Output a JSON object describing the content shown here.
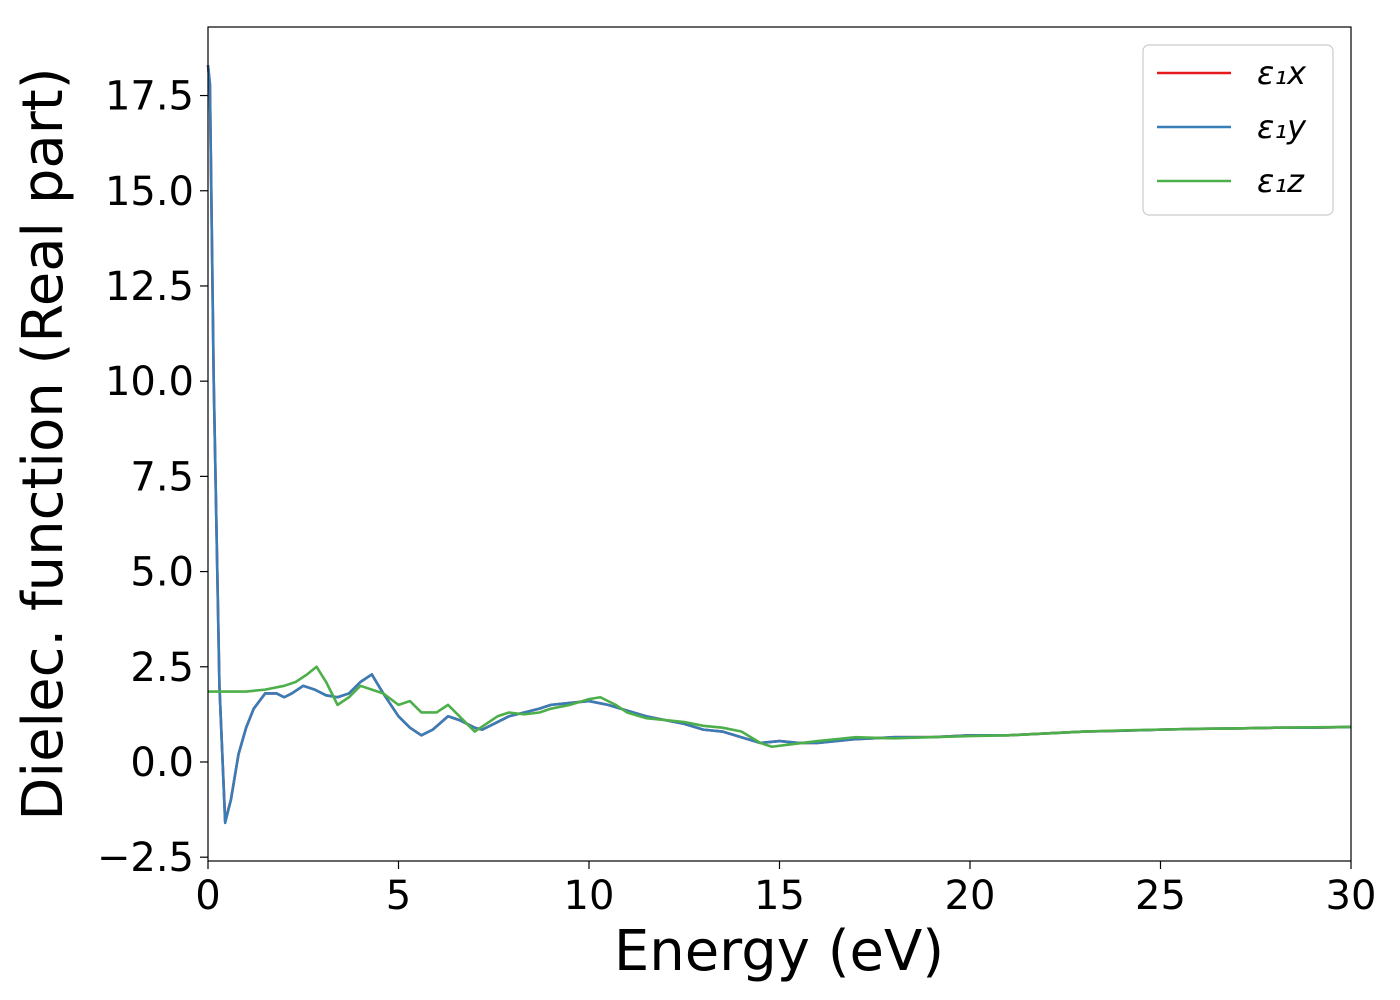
{
  "chart_data": {
    "type": "line",
    "title": "",
    "xlabel": "Energy (eV)",
    "ylabel": "Dielec. function (Real part)",
    "xlim": [
      0,
      30
    ],
    "ylim": [
      -2.6,
      19.3
    ],
    "xticks": [
      0,
      5,
      10,
      15,
      20,
      25,
      30
    ],
    "xtick_labels": [
      "0",
      "5",
      "10",
      "15",
      "20",
      "25",
      "30"
    ],
    "yticks": [
      -2.5,
      0.0,
      2.5,
      5.0,
      7.5,
      10.0,
      12.5,
      15.0,
      17.5
    ],
    "ytick_labels": [
      "−2.5",
      "0.0",
      "2.5",
      "5.0",
      "7.5",
      "10.0",
      "12.5",
      "15.0",
      "17.5"
    ],
    "grid": false,
    "legend_position": "top-right",
    "series": [
      {
        "name": "ε₁x",
        "color": "#e41a1c",
        "x": [
          0.0,
          0.05,
          0.15,
          0.3,
          0.45,
          0.6,
          0.8,
          1.0,
          1.2,
          1.5,
          1.8,
          2.0,
          2.2,
          2.5,
          2.8,
          3.1,
          3.4,
          3.7,
          4.0,
          4.3,
          4.6,
          5.0,
          5.3,
          5.6,
          5.9,
          6.3,
          6.6,
          7.0,
          7.2,
          7.5,
          7.9,
          8.3,
          8.7,
          9.0,
          9.5,
          10.0,
          10.5,
          11.0,
          11.5,
          12.0,
          12.5,
          13.0,
          13.5,
          14.0,
          14.5,
          15.0,
          15.5,
          16.0,
          17.0,
          18.0,
          19.0,
          20.0,
          21.0,
          22.0,
          23.0,
          24.0,
          25.0,
          26.0,
          27.0,
          28.0,
          29.0,
          30.0
        ],
        "y": [
          18.3,
          17.8,
          10.0,
          2.0,
          -1.55,
          -1.0,
          0.2,
          0.9,
          1.4,
          1.8,
          1.8,
          1.7,
          1.8,
          2.0,
          1.9,
          1.75,
          1.7,
          1.8,
          2.1,
          2.3,
          1.8,
          1.2,
          0.9,
          0.7,
          0.85,
          1.2,
          1.1,
          0.9,
          0.85,
          1.0,
          1.2,
          1.3,
          1.4,
          1.5,
          1.55,
          1.6,
          1.5,
          1.35,
          1.2,
          1.1,
          1.0,
          0.85,
          0.8,
          0.65,
          0.5,
          0.55,
          0.5,
          0.5,
          0.6,
          0.65,
          0.65,
          0.7,
          0.7,
          0.75,
          0.8,
          0.82,
          0.85,
          0.87,
          0.88,
          0.9,
          0.9,
          0.92
        ]
      },
      {
        "name": "ε₁y",
        "color": "#377eb8",
        "x": [
          0.0,
          0.05,
          0.15,
          0.3,
          0.45,
          0.6,
          0.8,
          1.0,
          1.2,
          1.5,
          1.8,
          2.0,
          2.2,
          2.5,
          2.8,
          3.1,
          3.4,
          3.7,
          4.0,
          4.3,
          4.6,
          5.0,
          5.3,
          5.6,
          5.9,
          6.3,
          6.6,
          7.0,
          7.2,
          7.5,
          7.9,
          8.3,
          8.7,
          9.0,
          9.5,
          10.0,
          10.5,
          11.0,
          11.5,
          12.0,
          12.5,
          13.0,
          13.5,
          14.0,
          14.5,
          15.0,
          15.5,
          16.0,
          17.0,
          18.0,
          19.0,
          20.0,
          21.0,
          22.0,
          23.0,
          24.0,
          25.0,
          26.0,
          27.0,
          28.0,
          29.0,
          30.0
        ],
        "y": [
          18.3,
          17.8,
          10.0,
          2.0,
          -1.6,
          -1.0,
          0.2,
          0.9,
          1.4,
          1.8,
          1.8,
          1.7,
          1.8,
          2.0,
          1.9,
          1.75,
          1.7,
          1.8,
          2.1,
          2.3,
          1.8,
          1.2,
          0.9,
          0.7,
          0.85,
          1.2,
          1.1,
          0.9,
          0.85,
          1.0,
          1.2,
          1.3,
          1.4,
          1.5,
          1.55,
          1.6,
          1.5,
          1.35,
          1.2,
          1.1,
          1.0,
          0.85,
          0.8,
          0.65,
          0.5,
          0.55,
          0.5,
          0.5,
          0.6,
          0.65,
          0.65,
          0.7,
          0.7,
          0.75,
          0.8,
          0.82,
          0.85,
          0.87,
          0.88,
          0.9,
          0.9,
          0.92
        ]
      },
      {
        "name": "ε₁z",
        "color": "#4daf4a",
        "x": [
          0.0,
          0.5,
          1.0,
          1.5,
          2.0,
          2.3,
          2.6,
          2.85,
          3.1,
          3.4,
          3.7,
          4.0,
          4.3,
          4.6,
          5.0,
          5.3,
          5.6,
          6.0,
          6.3,
          6.6,
          7.0,
          7.3,
          7.6,
          7.9,
          8.3,
          8.7,
          9.0,
          9.5,
          10.0,
          10.3,
          10.7,
          11.0,
          11.5,
          12.0,
          12.5,
          13.0,
          13.5,
          14.0,
          14.5,
          14.8,
          15.2,
          15.6,
          16.0,
          16.5,
          17.0,
          18.0,
          19.0,
          20.0,
          21.0,
          22.0,
          23.0,
          24.0,
          25.0,
          26.0,
          27.0,
          28.0,
          29.0,
          30.0
        ],
        "y": [
          1.85,
          1.85,
          1.85,
          1.9,
          2.0,
          2.1,
          2.3,
          2.5,
          2.1,
          1.5,
          1.7,
          2.0,
          1.9,
          1.8,
          1.5,
          1.6,
          1.3,
          1.3,
          1.5,
          1.2,
          0.8,
          1.0,
          1.2,
          1.3,
          1.25,
          1.3,
          1.4,
          1.5,
          1.65,
          1.7,
          1.5,
          1.3,
          1.15,
          1.1,
          1.05,
          0.95,
          0.9,
          0.8,
          0.5,
          0.4,
          0.45,
          0.5,
          0.55,
          0.6,
          0.65,
          0.62,
          0.65,
          0.68,
          0.7,
          0.75,
          0.8,
          0.83,
          0.85,
          0.87,
          0.88,
          0.9,
          0.91,
          0.92
        ]
      }
    ]
  }
}
